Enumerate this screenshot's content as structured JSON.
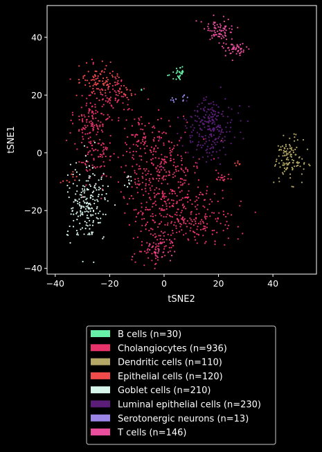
{
  "chart_data": {
    "type": "scatter",
    "title": "",
    "xlabel": "tSNE2",
    "ylabel": "tSNE1",
    "xlim": [
      -43,
      56
    ],
    "ylim": [
      -42,
      51
    ],
    "xticks": [
      -40,
      -20,
      0,
      20,
      40
    ],
    "yticks": [
      -40,
      -20,
      0,
      20,
      40
    ],
    "background": "#000000",
    "axis_color": "#ffffff",
    "grid": false,
    "legend_placement": "below plot",
    "series": [
      {
        "name": "B cells (n=30)",
        "count": 30,
        "color": "#66f0a8",
        "clusters": [
          {
            "center": [
              5.5,
              28.5
            ],
            "spread": [
              1.2,
              0.9
            ],
            "n": 18
          },
          {
            "center": [
              5.5,
              25.8
            ],
            "spread": [
              1.0,
              0.5
            ],
            "n": 8
          },
          {
            "center": [
              1.5,
              27.0
            ],
            "spread": [
              0.3,
              0.3
            ],
            "n": 2
          },
          {
            "center": [
              -8.5,
              22.0
            ],
            "spread": [
              0.3,
              0.3
            ],
            "n": 2
          }
        ]
      },
      {
        "name": "Cholangiocytes (n=936)",
        "count": 936,
        "color": "#e8336a",
        "clusters": [
          {
            "center": [
              -26.0,
              8.0
            ],
            "spread": [
              3.5,
              9.0
            ],
            "n": 200
          },
          {
            "center": [
              -17.0,
              20.0
            ],
            "spread": [
              2.5,
              3.0
            ],
            "n": 40
          },
          {
            "center": [
              -2.0,
              -5.0
            ],
            "spread": [
              8.0,
              9.0
            ],
            "n": 330
          },
          {
            "center": [
              8.0,
              -22.0
            ],
            "spread": [
              9.0,
              5.0
            ],
            "n": 260
          },
          {
            "center": [
              -3.0,
              -33.0
            ],
            "spread": [
              4.0,
              3.0
            ],
            "n": 60
          },
          {
            "center": [
              21.5,
              -9.0
            ],
            "spread": [
              1.2,
              0.8
            ],
            "n": 16
          },
          {
            "center": [
              -10.0,
              5.0
            ],
            "spread": [
              2.0,
              4.0
            ],
            "n": 30
          }
        ]
      },
      {
        "name": "Dendritic cells (n=110)",
        "count": 110,
        "color": "#b5a866",
        "clusters": [
          {
            "center": [
              46.0,
              -2.0
            ],
            "spread": [
              2.6,
              3.6
            ],
            "n": 110
          }
        ]
      },
      {
        "name": "Epithelial cells (n=120)",
        "count": 120,
        "color": "#f04a4a",
        "clusters": [
          {
            "center": [
              -23.5,
              25.0
            ],
            "spread": [
              3.5,
              3.0
            ],
            "n": 90
          },
          {
            "center": [
              -14.0,
              21.0
            ],
            "spread": [
              2.0,
              1.5
            ],
            "n": 15
          },
          {
            "center": [
              27.0,
              -3.5
            ],
            "spread": [
              0.6,
              0.4
            ],
            "n": 6
          },
          {
            "center": [
              -35.0,
              -9.0
            ],
            "spread": [
              1.5,
              1.0
            ],
            "n": 9
          }
        ]
      },
      {
        "name": "Goblet cells (n=210)",
        "count": 210,
        "color": "#d8f5ec",
        "clusters": [
          {
            "center": [
              -28.0,
              -18.0
            ],
            "spread": [
              3.8,
              6.5
            ],
            "n": 200
          },
          {
            "center": [
              -13.5,
              -10.0
            ],
            "spread": [
              0.8,
              1.2
            ],
            "n": 10
          }
        ]
      },
      {
        "name": "Luminal epithelial cells (n=230)",
        "count": 230,
        "color": "#5b1e78",
        "clusters": [
          {
            "center": [
              17.0,
              9.0
            ],
            "spread": [
              4.5,
              5.0
            ],
            "n": 230
          }
        ]
      },
      {
        "name": "Serotonergic neurons (n=13)",
        "count": 13,
        "color": "#9b86e8",
        "clusters": [
          {
            "center": [
              3.5,
              18.5
            ],
            "spread": [
              0.8,
              0.5
            ],
            "n": 7
          },
          {
            "center": [
              7.0,
              19.0
            ],
            "spread": [
              0.6,
              0.6
            ],
            "n": 6
          }
        ]
      },
      {
        "name": "T cells (n=146)",
        "count": 146,
        "color": "#e84e9c",
        "clusters": [
          {
            "center": [
              20.0,
              42.5
            ],
            "spread": [
              3.0,
              2.0
            ],
            "n": 70
          },
          {
            "center": [
              26.0,
              36.0
            ],
            "spread": [
              2.5,
              1.8
            ],
            "n": 50
          },
          {
            "center": [
              -2.0,
              -33.0
            ],
            "spread": [
              3.0,
              3.0
            ],
            "n": 26
          }
        ]
      }
    ]
  }
}
